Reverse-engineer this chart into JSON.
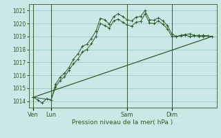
{
  "background_color": "#cce8e6",
  "grid_color": "#99cccc",
  "line_color": "#2d5a2d",
  "xlabel": "Pression niveau de la mer( hPa )",
  "ylim": [
    1013.5,
    1021.5
  ],
  "yticks": [
    1014,
    1015,
    1016,
    1017,
    1018,
    1019,
    1020,
    1021
  ],
  "xlim": [
    0,
    42
  ],
  "day_labels": [
    "Ven",
    "Lun",
    "Sam",
    "Dim"
  ],
  "day_positions": [
    1,
    5,
    22,
    32
  ],
  "xtick_minor_step": 2,
  "line1_x": [
    1,
    2,
    3,
    4,
    5,
    6,
    7,
    8,
    9,
    10,
    11,
    12,
    13,
    14,
    15,
    16,
    17,
    18,
    19,
    20,
    21,
    22,
    23,
    24,
    25,
    26,
    27,
    28,
    29,
    30,
    31,
    32,
    33,
    34,
    35,
    36,
    37,
    38,
    39,
    40,
    41
  ],
  "line1_y": [
    1014.3,
    1014.1,
    1013.85,
    1014.2,
    1014.1,
    1015.3,
    1015.85,
    1016.15,
    1016.6,
    1017.25,
    1017.65,
    1018.25,
    1018.4,
    1018.85,
    1019.4,
    1020.4,
    1020.3,
    1019.95,
    1020.55,
    1020.75,
    1020.55,
    1020.3,
    1020.2,
    1020.5,
    1020.55,
    1021.0,
    1020.3,
    1020.25,
    1020.45,
    1020.2,
    1019.85,
    1019.2,
    1019.0,
    1019.1,
    1019.15,
    1019.2,
    1019.1,
    1019.0,
    1019.1,
    1019.05,
    1019.0
  ],
  "line2_x": [
    1,
    5,
    6,
    7,
    8,
    9,
    10,
    11,
    12,
    13,
    14,
    15,
    16,
    17,
    18,
    19,
    20,
    21,
    22,
    23,
    24,
    25,
    26,
    27,
    28,
    29,
    30,
    31,
    32,
    33,
    34,
    35,
    36,
    37,
    38,
    39,
    40,
    41
  ],
  "line2_y": [
    1014.3,
    1014.1,
    1015.1,
    1015.6,
    1015.9,
    1016.4,
    1016.9,
    1017.25,
    1017.8,
    1018.0,
    1018.45,
    1019.0,
    1020.0,
    1019.85,
    1019.65,
    1020.2,
    1020.35,
    1020.1,
    1019.9,
    1019.8,
    1020.1,
    1020.15,
    1020.75,
    1020.05,
    1020.0,
    1020.2,
    1019.95,
    1019.6,
    1019.0,
    1019.0,
    1019.05,
    1019.1,
    1019.0,
    1019.05,
    1019.1,
    1019.0,
    1019.05,
    1019.0
  ],
  "line3_x": [
    1,
    41
  ],
  "line3_y": [
    1014.3,
    1019.0
  ]
}
